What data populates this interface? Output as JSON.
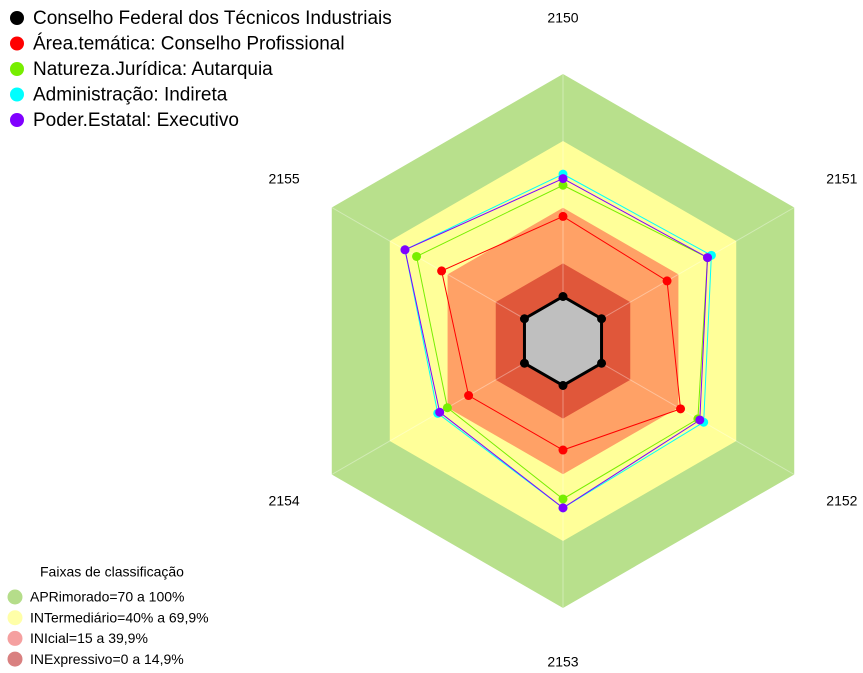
{
  "chart_data": {
    "type": "radar",
    "categories": [
      "2150",
      "2151",
      "2152",
      "2153",
      "2154",
      "2155"
    ],
    "ylim": [
      -20,
      100
    ],
    "series": [
      {
        "name": "Conselho Federal dos Técnicos Industriais",
        "color": "#000000",
        "values": [
          0,
          0,
          0,
          0,
          0,
          0
        ]
      },
      {
        "name": "Área.temática: Conselho Profissional",
        "color": "#ff0000",
        "values": [
          36,
          34,
          41,
          29,
          29,
          43
        ]
      },
      {
        "name": "Natureza.Jurídica: Autarquia",
        "color": "#77ee00",
        "values": [
          50,
          55,
          50,
          51,
          40,
          56
        ]
      },
      {
        "name": "Administração: Indireta",
        "color": "#00ffff",
        "values": [
          55,
          57,
          53,
          55,
          45,
          62
        ]
      },
      {
        "name": "Poder.Estatal: Executivo",
        "color": "#8000ff",
        "values": [
          53,
          55,
          51,
          55,
          44,
          62
        ]
      }
    ],
    "bands_title": "Faixas de classificação",
    "bands": [
      {
        "label": "APRimorado=70 a 100%",
        "from": 70,
        "to": 100,
        "color": "#b8e08c",
        "legend_color": "#b5dd8a"
      },
      {
        "label": "INTermediário=40% a 69,9%",
        "from": 40,
        "to": 69.9,
        "color": "#ffff99",
        "legend_color": "#ffffa8"
      },
      {
        "label": "INIcial=15 a 39,9%",
        "from": 15,
        "to": 39.9,
        "color": "#ffa166",
        "legend_color": "#f5a0a0"
      },
      {
        "label": "INExpressivo=0 a 14,9%",
        "from": 0,
        "to": 14.9,
        "color": "#e0573a",
        "legend_color": "#d98080"
      }
    ]
  }
}
